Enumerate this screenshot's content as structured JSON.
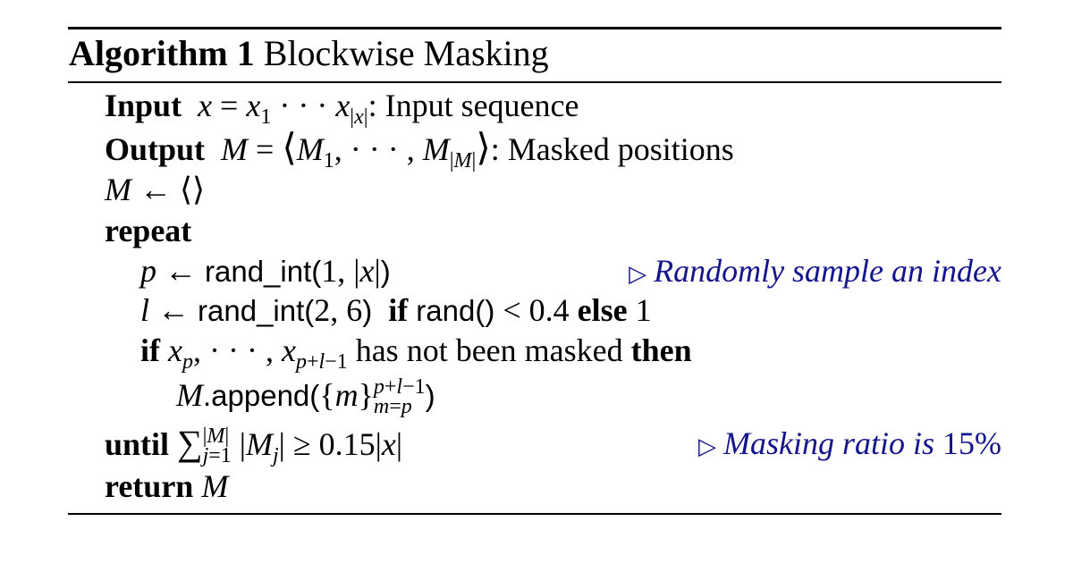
{
  "algorithm": {
    "label": "Algorithm 1",
    "name": "Blockwise Masking"
  },
  "keywords": {
    "input": "Input",
    "output": "Output",
    "repeat": "repeat",
    "if": "if",
    "else": "else",
    "then": "then",
    "until": "until",
    "return": "return"
  },
  "lines": {
    "input_desc": ": Input sequence",
    "output_desc": ": Masked positions",
    "rand_int": "rand_int",
    "rand": "rand",
    "append": "append",
    "not_masked": "has not been masked",
    "threshold": "0.15",
    "prob": "0.4"
  },
  "comments": {
    "sample": "Randomly sample an index",
    "ratio_text": "Masking ratio is",
    "ratio_value": "15%"
  }
}
